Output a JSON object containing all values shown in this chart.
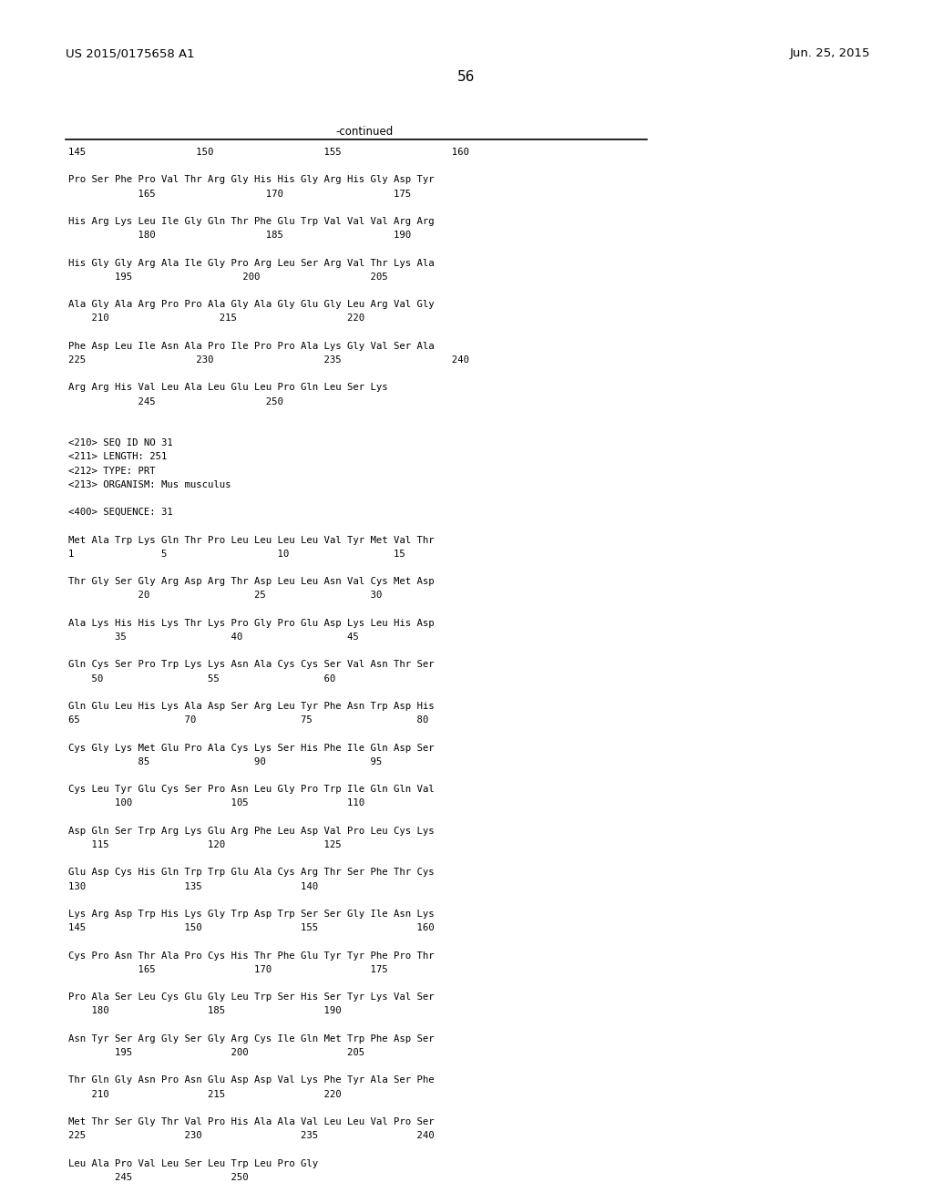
{
  "patent_number": "US 2015/0175658 A1",
  "date": "Jun. 25, 2015",
  "page_number": "56",
  "continued_label": "-continued",
  "background_color": "#ffffff",
  "text_color": "#000000",
  "content_lines": [
    "145                   150                   155                   160",
    "",
    "Pro Ser Phe Pro Val Thr Arg Gly His His Gly Arg His Gly Asp Tyr",
    "            165                   170                   175",
    "",
    "His Arg Lys Leu Ile Gly Gln Thr Phe Glu Trp Val Val Val Arg Arg",
    "            180                   185                   190",
    "",
    "His Gly Gly Arg Ala Ile Gly Pro Arg Leu Ser Arg Val Thr Lys Ala",
    "        195                   200                   205",
    "",
    "Ala Gly Ala Arg Pro Pro Ala Gly Ala Gly Glu Gly Leu Arg Val Gly",
    "    210                   215                   220",
    "",
    "Phe Asp Leu Ile Asn Ala Pro Ile Pro Pro Ala Lys Gly Val Ser Ala",
    "225                   230                   235                   240",
    "",
    "Arg Arg His Val Leu Ala Leu Glu Leu Pro Gln Leu Ser Lys",
    "            245                   250",
    "",
    "",
    "<210> SEQ ID NO 31",
    "<211> LENGTH: 251",
    "<212> TYPE: PRT",
    "<213> ORGANISM: Mus musculus",
    "",
    "<400> SEQUENCE: 31",
    "",
    "Met Ala Trp Lys Gln Thr Pro Leu Leu Leu Leu Val Tyr Met Val Thr",
    "1               5                   10                  15",
    "",
    "Thr Gly Ser Gly Arg Asp Arg Thr Asp Leu Leu Asn Val Cys Met Asp",
    "            20                  25                  30",
    "",
    "Ala Lys His His Lys Thr Lys Pro Gly Pro Glu Asp Lys Leu His Asp",
    "        35                  40                  45",
    "",
    "Gln Cys Ser Pro Trp Lys Lys Asn Ala Cys Cys Ser Val Asn Thr Ser",
    "    50                  55                  60",
    "",
    "Gln Glu Leu His Lys Ala Asp Ser Arg Leu Tyr Phe Asn Trp Asp His",
    "65                  70                  75                  80",
    "",
    "Cys Gly Lys Met Glu Pro Ala Cys Lys Ser His Phe Ile Gln Asp Ser",
    "            85                  90                  95",
    "",
    "Cys Leu Tyr Glu Cys Ser Pro Asn Leu Gly Pro Trp Ile Gln Gln Val",
    "        100                 105                 110",
    "",
    "Asp Gln Ser Trp Arg Lys Glu Arg Phe Leu Asp Val Pro Leu Cys Lys",
    "    115                 120                 125",
    "",
    "Glu Asp Cys His Gln Trp Trp Glu Ala Cys Arg Thr Ser Phe Thr Cys",
    "130                 135                 140",
    "",
    "Lys Arg Asp Trp His Lys Gly Trp Asp Trp Ser Ser Gly Ile Asn Lys",
    "145                 150                 155                 160",
    "",
    "Cys Pro Asn Thr Ala Pro Cys His Thr Phe Glu Tyr Tyr Phe Pro Thr",
    "            165                 170                 175",
    "",
    "Pro Ala Ser Leu Cys Glu Gly Leu Trp Ser His Ser Tyr Lys Val Ser",
    "    180                 185                 190",
    "",
    "Asn Tyr Ser Arg Gly Ser Gly Arg Cys Ile Gln Met Trp Phe Asp Ser",
    "        195                 200                 205",
    "",
    "Thr Gln Gly Asn Pro Asn Glu Asp Asp Val Lys Phe Tyr Ala Ser Phe",
    "    210                 215                 220",
    "",
    "Met Thr Ser Gly Thr Val Pro His Ala Ala Val Leu Leu Val Pro Ser",
    "225                 230                 235                 240",
    "",
    "Leu Ala Pro Val Leu Ser Leu Trp Leu Pro Gly",
    "        245                 250"
  ]
}
